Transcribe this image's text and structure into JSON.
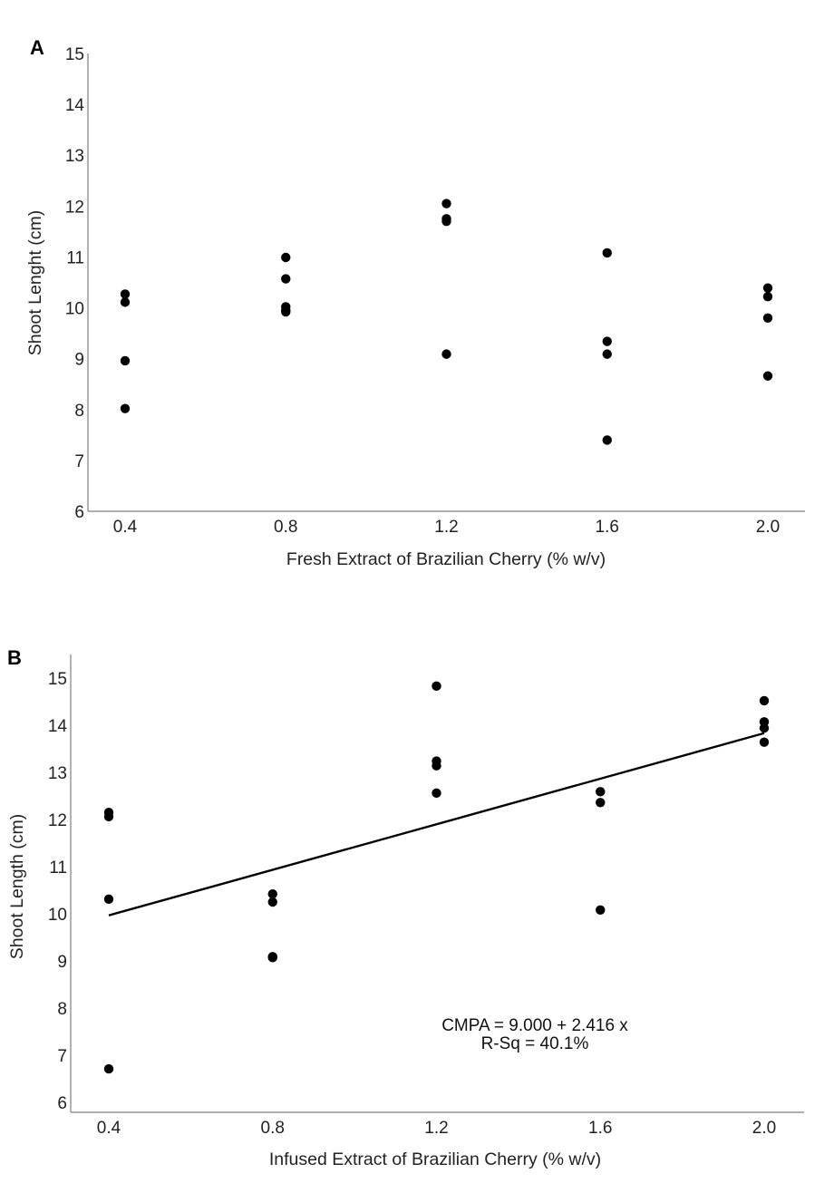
{
  "chart_data": [
    {
      "type": "scatter",
      "panel_label": "A",
      "xlabel": "Fresh Extract of Brazilian Cherry (% w/v)",
      "ylabel": "Shoot Lenght (cm)",
      "x_ticks": [
        "0.4",
        "0.8",
        "1.2",
        "1.6",
        "2.0"
      ],
      "y_ticks": [
        "6",
        "7",
        "8",
        "9",
        "10",
        "11",
        "12",
        "13",
        "14",
        "15"
      ],
      "xlim": [
        0.3,
        2.1
      ],
      "ylim": [
        6,
        15
      ],
      "grid": false,
      "series": [
        {
          "x": [
            0.4,
            0.4,
            0.4,
            0.4,
            0.8,
            0.8,
            0.8,
            0.8,
            0.8,
            1.2,
            1.2,
            1.2,
            1.2,
            1.6,
            1.6,
            1.6,
            1.6,
            2.0,
            2.0,
            2.0,
            2.0
          ],
          "y": [
            10.27,
            10.11,
            8.96,
            8.02,
            10.99,
            10.57,
            10.02,
            9.92,
            9.95,
            12.05,
            11.75,
            11.7,
            9.09,
            11.08,
            9.34,
            9.09,
            7.4,
            10.39,
            10.22,
            9.8,
            8.66
          ]
        }
      ]
    },
    {
      "type": "scatter",
      "panel_label": "B",
      "xlabel": "Infused Extract of Brazilian Cherry (% w/v)",
      "ylabel": "Shoot Length (cm)",
      "x_ticks": [
        "0.4",
        "0.8",
        "1.2",
        "1.6",
        "2.0"
      ],
      "y_ticks": [
        "6",
        "7",
        "8",
        "9",
        "10",
        "11",
        "12",
        "13",
        "14",
        "15"
      ],
      "xlim": [
        0.37,
        2.13
      ],
      "ylim": [
        6,
        15.3
      ],
      "grid": false,
      "series": [
        {
          "x": [
            0.4,
            0.4,
            0.4,
            0.4,
            0.8,
            0.8,
            0.8,
            0.8,
            1.2,
            1.2,
            1.2,
            1.2,
            1.6,
            1.6,
            1.6,
            2.0,
            2.0,
            2.0,
            2.0
          ],
          "y": [
            12.15,
            12.06,
            10.31,
            6.71,
            10.42,
            10.25,
            9.09,
            9.07,
            14.83,
            13.24,
            13.14,
            12.56,
            12.59,
            12.36,
            10.08,
            14.52,
            14.07,
            13.94,
            13.64
          ]
        }
      ],
      "fit": {
        "intercept": 9.0,
        "slope": 2.416,
        "x_range": [
          0.4,
          2.0
        ]
      },
      "annotations": [
        "CMPA = 9.000 + 2.416 x",
        "R-Sq = 40.1%"
      ]
    }
  ]
}
